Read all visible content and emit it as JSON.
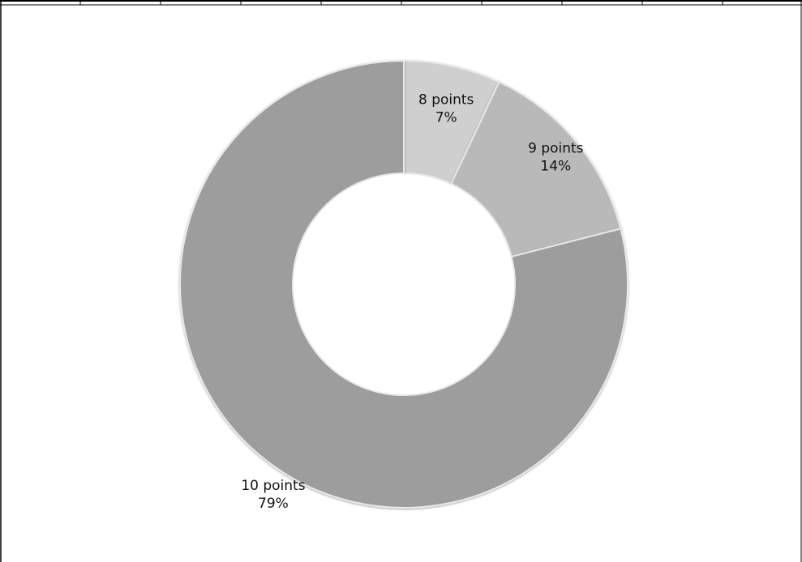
{
  "chart_data": {
    "type": "pie",
    "variant": "donut",
    "title": "",
    "legend": "none",
    "slices": [
      {
        "label": "8 points",
        "value": 7,
        "percent_label": "7%",
        "color": "#cfcfcf"
      },
      {
        "label": "9 points",
        "value": 14,
        "percent_label": "14%",
        "color": "#b9b9b9"
      },
      {
        "label": "10 points",
        "value": 79,
        "percent_label": "79%",
        "color": "#9d9d9d"
      }
    ]
  }
}
